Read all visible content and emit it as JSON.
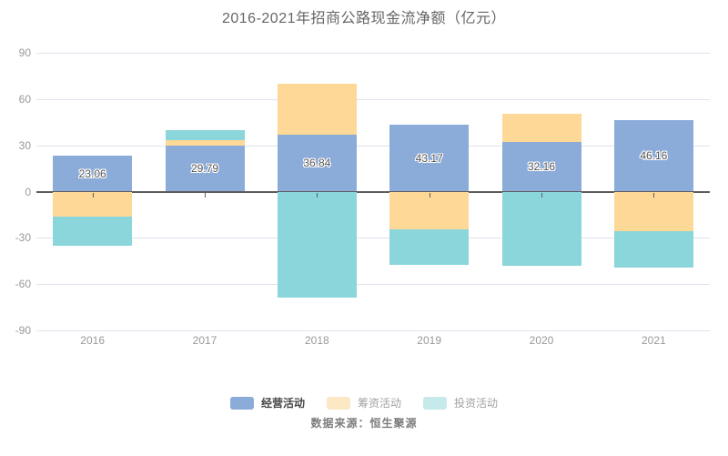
{
  "title": "2016-2021年招商公路现金流净额（亿元）",
  "source": "数据来源：恒生聚源",
  "colors": {
    "operating": "#8babd8",
    "financing": "#fdd896",
    "investing": "#8ad6db",
    "grid": "#e0e4ef",
    "zero_line": "#5c5c5c",
    "axis_label": "#999999",
    "title": "#666666",
    "bar_label": "#555555"
  },
  "legend": [
    {
      "label": "经营活动",
      "swatch": "#8babd8",
      "text_color": "#464646",
      "bold": true
    },
    {
      "label": "筹资活动",
      "swatch": "#fce8c5",
      "text_color": "#a2a2a2",
      "bold": false
    },
    {
      "label": "投资活动",
      "swatch": "#c6e9eb",
      "text_color": "#a2a2a2",
      "bold": false
    }
  ],
  "chart_data": {
    "type": "bar",
    "stacked": true,
    "title": "2016-2021年招商公路现金流净额（亿元）",
    "xlabel": "",
    "ylabel": "",
    "categories": [
      "2016",
      "2017",
      "2018",
      "2019",
      "2020",
      "2021"
    ],
    "series": [
      {
        "name": "经营活动",
        "color": "#8babd8",
        "values": [
          23.06,
          29.79,
          36.84,
          43.17,
          32.16,
          46.16
        ],
        "labels": [
          "23.06",
          "29.79",
          "36.84",
          "43.17",
          "32.16",
          "46.16"
        ]
      },
      {
        "name": "筹资活动",
        "color": "#fdd896",
        "values": [
          -16.3,
          3.3,
          33.2,
          -24.6,
          18.4,
          -25.7
        ]
      },
      {
        "name": "投资活动",
        "color": "#8ad6db",
        "values": [
          -18.7,
          6.9,
          -68.5,
          -22.8,
          -48.2,
          -23.3
        ]
      }
    ],
    "yticks": [
      90,
      60,
      30,
      0,
      -30,
      -60,
      -90
    ],
    "ylim": [
      -90,
      90
    ],
    "grid": true,
    "legend_position": "bottom"
  }
}
